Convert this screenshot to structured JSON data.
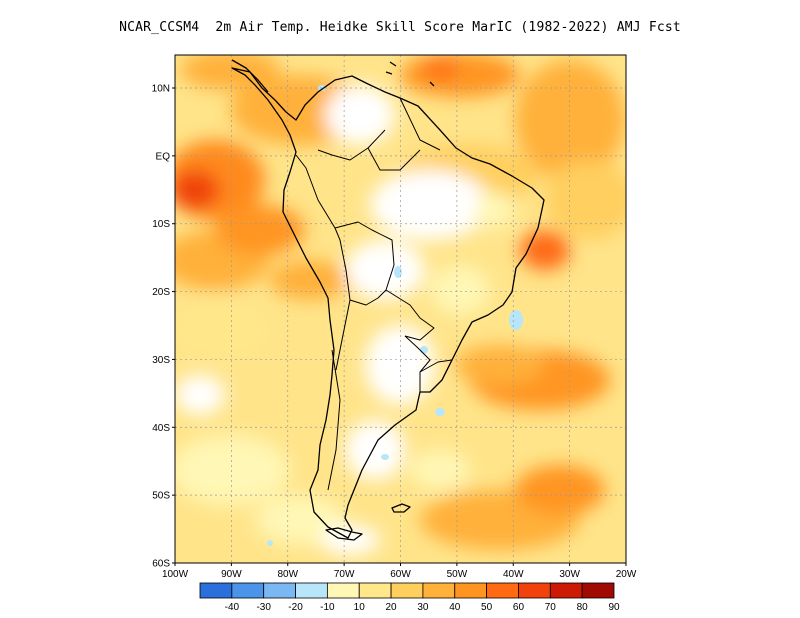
{
  "title": "NCAR_CCSM4  2m Air Temp. Heidke Skill Score MarIC (1982-2022) AMJ Fcst",
  "map": {
    "region": "South America",
    "lon_range": [
      -100,
      -20
    ],
    "lat_range": [
      -60,
      15
    ],
    "grid": true,
    "lat_ticks": [
      "10N",
      "EQ",
      "10S",
      "20S",
      "30S",
      "40S",
      "50S",
      "60S"
    ],
    "lon_ticks": [
      "100W",
      "90W",
      "80W",
      "70W",
      "60W",
      "50W",
      "40W",
      "30W",
      "20W"
    ]
  },
  "legend": {
    "labels": [
      "-40",
      "-30",
      "-20",
      "-10",
      "10",
      "20",
      "30",
      "40",
      "50",
      "60",
      "70",
      "80",
      "90"
    ],
    "colors": [
      "#2a6fdb",
      "#4a94ea",
      "#79b8f2",
      "#b7e6fa",
      "#fff7b5",
      "#ffe78a",
      "#ffcf5e",
      "#ffb13a",
      "#ff9520",
      "#ff6a12",
      "#f0420a",
      "#cc1a05",
      "#a00a00"
    ]
  }
}
